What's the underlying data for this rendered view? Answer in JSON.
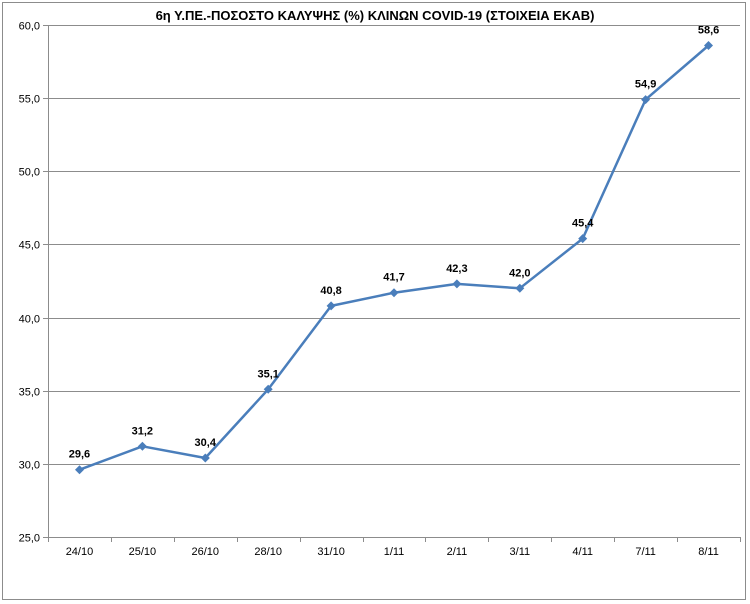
{
  "colors": {
    "series": "#4a7ebb",
    "grid": "#8c8c8c",
    "axis": "#8c8c8c",
    "text": "#000000"
  },
  "chart_data": {
    "type": "line",
    "title": "6η Υ.ΠΕ.-ΠΟΣΟΣΤΟ ΚΑΛΥΨΗΣ (%) ΚΛΙΝΩΝ COVID-19 (ΣΤΟΙΧΕΙΑ ΕΚΑΒ)",
    "xlabel": "",
    "ylabel": "",
    "categories": [
      "24/10",
      "25/10",
      "26/10",
      "28/10",
      "31/10",
      "1/11",
      "2/11",
      "3/11",
      "4/11",
      "7/11",
      "8/11"
    ],
    "series": [
      {
        "values": [
          29.6,
          31.2,
          30.4,
          35.1,
          40.8,
          41.7,
          42.3,
          42.0,
          45.4,
          54.9,
          58.6
        ],
        "data_labels": [
          "29,6",
          "31,2",
          "30,4",
          "35,1",
          "40,8",
          "41,7",
          "42,3",
          "42,0",
          "45,4",
          "54,9",
          "58,6"
        ],
        "marker": "diamond"
      }
    ],
    "ylim": [
      25.0,
      60.0
    ],
    "yticks": [
      25.0,
      30.0,
      35.0,
      40.0,
      45.0,
      50.0,
      55.0,
      60.0
    ],
    "ytick_labels": [
      "25,0",
      "30,0",
      "35,0",
      "40,0",
      "45,0",
      "50,0",
      "55,0",
      "60,0"
    ],
    "grid": true,
    "legend": "none"
  }
}
